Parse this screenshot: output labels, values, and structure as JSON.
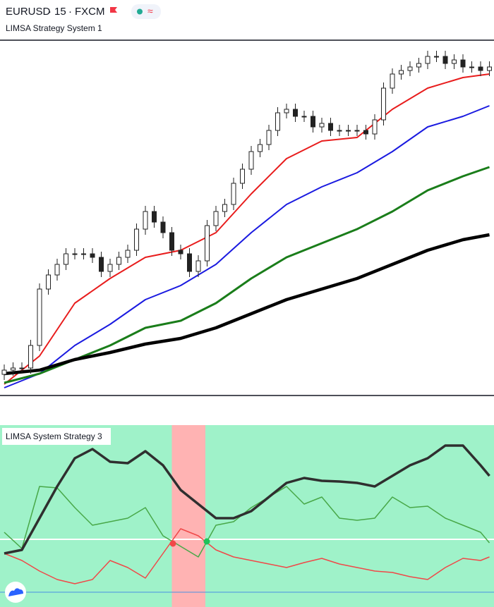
{
  "header": {
    "symbol": "EURUSD",
    "interval": "15",
    "exchange": "FXCM"
  },
  "chart_data": [
    {
      "type": "candlestick",
      "title": "LIMSA Strategy System 1",
      "xlim": [
        -0.48,
        55.52
      ],
      "ylim": [
        0,
        504
      ],
      "up_color": "#ffffff",
      "down_color": "#222222",
      "open": [
        30,
        36,
        39,
        39,
        71,
        151,
        171,
        186,
        201,
        201,
        201,
        196,
        176,
        186,
        196,
        206,
        236,
        261,
        246,
        231,
        206,
        201,
        176,
        191,
        241,
        261,
        271,
        301,
        321,
        346,
        356,
        376,
        401,
        406,
        396,
        396,
        381,
        386,
        376,
        376,
        376,
        376,
        371,
        391,
        436,
        456,
        461,
        466,
        471,
        481,
        481,
        471,
        476,
        466,
        466,
        461
      ],
      "high": [
        44,
        47,
        47,
        79,
        159,
        179,
        194,
        209,
        209,
        209,
        209,
        204,
        194,
        204,
        214,
        244,
        269,
        269,
        254,
        239,
        214,
        209,
        199,
        249,
        269,
        279,
        309,
        329,
        354,
        364,
        384,
        409,
        414,
        414,
        404,
        404,
        394,
        394,
        384,
        384,
        384,
        384,
        399,
        444,
        464,
        469,
        474,
        479,
        489,
        489,
        489,
        484,
        484,
        474,
        474,
        474
      ],
      "low": [
        22,
        28,
        31,
        31,
        63,
        143,
        163,
        178,
        193,
        193,
        188,
        168,
        168,
        178,
        188,
        198,
        228,
        238,
        223,
        198,
        193,
        168,
        168,
        183,
        233,
        253,
        263,
        293,
        313,
        338,
        348,
        368,
        393,
        388,
        388,
        373,
        373,
        368,
        368,
        368,
        368,
        363,
        363,
        383,
        428,
        448,
        453,
        458,
        463,
        473,
        463,
        463,
        458,
        458,
        453,
        453
      ],
      "close": [
        36,
        39,
        39,
        71,
        151,
        171,
        186,
        201,
        201,
        201,
        196,
        176,
        186,
        196,
        206,
        236,
        261,
        246,
        231,
        206,
        201,
        176,
        191,
        241,
        261,
        271,
        301,
        321,
        346,
        356,
        376,
        401,
        406,
        396,
        396,
        381,
        386,
        376,
        376,
        376,
        376,
        371,
        391,
        436,
        456,
        461,
        466,
        471,
        481,
        481,
        471,
        476,
        466,
        466,
        461,
        466
      ],
      "series": [
        {
          "color": "#e81c1c",
          "width": 2,
          "x": [
            0,
            4,
            8,
            12,
            16,
            20,
            24,
            28,
            32,
            36,
            40,
            44,
            48,
            52,
            55
          ],
          "values": [
            16,
            56,
            131,
            166,
            196,
            206,
            231,
            286,
            336,
            361,
            366,
            406,
            436,
            451,
            456
          ]
        },
        {
          "color": "#1a1ae0",
          "width": 2,
          "x": [
            0,
            4,
            8,
            12,
            16,
            20,
            24,
            28,
            32,
            36,
            40,
            44,
            48,
            52,
            55
          ],
          "values": [
            11,
            31,
            71,
            101,
            136,
            156,
            186,
            231,
            271,
            296,
            316,
            346,
            381,
            396,
            411
          ]
        },
        {
          "color": "#1a7d1a",
          "width": 3,
          "x": [
            0,
            4,
            8,
            12,
            16,
            20,
            24,
            28,
            32,
            36,
            40,
            44,
            48,
            52,
            55
          ],
          "values": [
            18,
            31,
            51,
            71,
            96,
            106,
            131,
            166,
            196,
            216,
            236,
            261,
            291,
            311,
            324
          ]
        },
        {
          "color": "#000000",
          "width": 4.5,
          "x": [
            0,
            4,
            8,
            12,
            16,
            20,
            24,
            28,
            32,
            36,
            40,
            44,
            48,
            52,
            55
          ],
          "values": [
            31,
            36,
            51,
            61,
            73,
            81,
            96,
            116,
            136,
            151,
            166,
            186,
            206,
            221,
            228
          ]
        }
      ]
    },
    {
      "type": "line",
      "title": "LIMSA System Strategy 3",
      "background": "#9ff2c9",
      "xlim": [
        -0.48,
        55.52
      ],
      "ylim": [
        0,
        258
      ],
      "bands": [
        {
          "from": 19,
          "to": 22.8,
          "color": "#ffb3b3"
        }
      ],
      "hlines": [
        {
          "value": 96,
          "color": "#ffffff"
        },
        {
          "value": 21,
          "color": "#4a90e2"
        }
      ],
      "x": [
        0,
        2,
        4,
        6,
        8,
        10,
        12,
        14,
        16,
        18,
        20,
        22,
        24,
        26,
        28,
        30,
        32,
        34,
        36,
        38,
        40,
        42,
        44,
        46,
        48,
        50,
        52,
        54,
        55
      ],
      "series": [
        {
          "color": "#f04848",
          "width": 1.5,
          "values": [
            76,
            66,
            51,
            39,
            33,
            39,
            66,
            56,
            41,
            76,
            111,
            101,
            81,
            71,
            66,
            61,
            56,
            63,
            69,
            61,
            56,
            51,
            49,
            43,
            39,
            56,
            69,
            66,
            71
          ]
        },
        {
          "color": "#48a848",
          "width": 1.5,
          "values": [
            106,
            83,
            171,
            169,
            141,
            116,
            121,
            126,
            141,
            101,
            86,
            71,
            116,
            121,
            141,
            156,
            171,
            146,
            156,
            126,
            123,
            126,
            156,
            141,
            143,
            126,
            116,
            106,
            91
          ]
        },
        {
          "color": "#2f2f2f",
          "width": 3.5,
          "values": [
            76,
            81,
            126,
            171,
            211,
            224,
            206,
            204,
            221,
            201,
            166,
            146,
            126,
            126,
            136,
            156,
            176,
            183,
            179,
            178,
            176,
            171,
            186,
            201,
            211,
            229,
            229,
            201,
            186
          ]
        }
      ],
      "signals": [
        {
          "x": 19.12,
          "value": 90,
          "color": "#f04848"
        },
        {
          "x": 22.96,
          "value": 93,
          "color": "#1fc25a"
        }
      ]
    }
  ]
}
